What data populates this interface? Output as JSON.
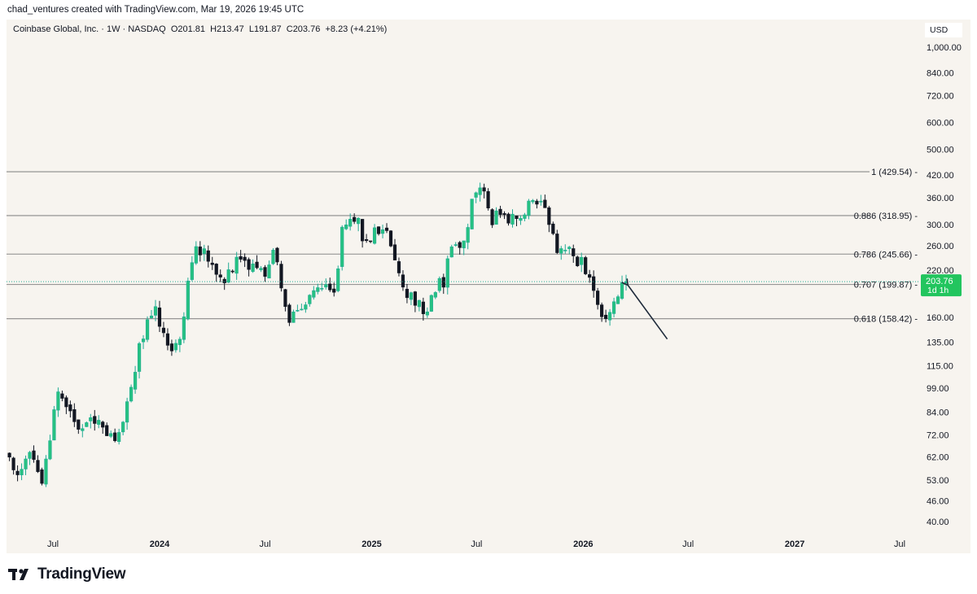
{
  "header": {
    "credit": "chad_ventures created with TradingView.com, Mar 19, 2026 19:45 UTC"
  },
  "legend": {
    "symbol": "Coinbase Global, Inc. · 1W · NASDAQ",
    "open": "O201.81",
    "high": "H213.47",
    "low": "L191.87",
    "close": "C203.76",
    "change": "+8.23 (+4.21%)"
  },
  "currency": "USD",
  "brand": {
    "name": "TradingView"
  },
  "colors": {
    "up": "#22ab94",
    "down": "#131722",
    "background": "#f7f4ef",
    "price_tag": "#22c55e"
  },
  "chart_data": {
    "type": "candlestick",
    "scale": "log",
    "interval": "1W",
    "ylim": [
      37,
      1100
    ],
    "y_ticks": [
      {
        "value": 1000,
        "label": "1,000.00"
      },
      {
        "value": 840,
        "label": "840.00"
      },
      {
        "value": 720,
        "label": "720.00"
      },
      {
        "value": 600,
        "label": "600.00"
      },
      {
        "value": 500,
        "label": "500.00"
      },
      {
        "value": 420,
        "label": "420.00"
      },
      {
        "value": 360,
        "label": "360.00"
      },
      {
        "value": 300,
        "label": "300.00"
      },
      {
        "value": 260,
        "label": "260.00"
      },
      {
        "value": 220,
        "label": "220.00"
      },
      {
        "value": 160,
        "label": "160.00"
      },
      {
        "value": 135,
        "label": "135.00"
      },
      {
        "value": 115,
        "label": "115.00"
      },
      {
        "value": 99,
        "label": "99.00"
      },
      {
        "value": 84,
        "label": "84.00"
      },
      {
        "value": 72,
        "label": "72.00"
      },
      {
        "value": 62,
        "label": "62.00"
      },
      {
        "value": 53,
        "label": "53.00"
      },
      {
        "value": 46,
        "label": "46.00"
      },
      {
        "value": 40,
        "label": "40.00"
      }
    ],
    "x_start": "2023-04-10",
    "x_end": "2027-08-01",
    "x_ticks": [
      {
        "date": "2023-07-01",
        "label": "Jul",
        "bold": false
      },
      {
        "date": "2024-01-01",
        "label": "2024",
        "bold": true
      },
      {
        "date": "2024-07-01",
        "label": "Jul",
        "bold": false
      },
      {
        "date": "2025-01-01",
        "label": "2025",
        "bold": true
      },
      {
        "date": "2025-07-01",
        "label": "Jul",
        "bold": false
      },
      {
        "date": "2026-01-01",
        "label": "2026",
        "bold": true
      },
      {
        "date": "2026-07-01",
        "label": "Jul",
        "bold": false
      },
      {
        "date": "2027-01-01",
        "label": "2027",
        "bold": true
      },
      {
        "date": "2027-07-01",
        "label": "Jul",
        "bold": false
      }
    ],
    "fib_levels": [
      {
        "level": "1",
        "value": 429.54,
        "label": "1 (429.54)"
      },
      {
        "level": "0.886",
        "value": 318.95,
        "label": "0.886 (318.95)"
      },
      {
        "level": "0.786",
        "value": 245.66,
        "label": "0.786 (245.66)"
      },
      {
        "level": "0.707",
        "value": 199.87,
        "label": "0.707 (199.87)"
      },
      {
        "level": "0.618",
        "value": 158.42,
        "label": "0.618 (158.42)"
      }
    ],
    "last_price": {
      "value": 203.76,
      "label": "203.76",
      "countdown": "1d 1h"
    },
    "annotation": {
      "type": "arrow",
      "from": {
        "date": "2026-05-26",
        "value": 138
      },
      "to": {
        "date": "2026-03-19",
        "value": 199
      }
    },
    "start_date": "2023-04-10",
    "close_path": [
      [
        "2023-04-10",
        66
      ],
      [
        "2023-05-01",
        54
      ],
      [
        "2023-05-22",
        62
      ],
      [
        "2023-06-12",
        52
      ],
      [
        "2023-06-26",
        72
      ],
      [
        "2023-07-10",
        100
      ],
      [
        "2023-07-24",
        88
      ],
      [
        "2023-08-14",
        75
      ],
      [
        "2023-09-04",
        78
      ],
      [
        "2023-09-25",
        76
      ],
      [
        "2023-10-16",
        72
      ],
      [
        "2023-10-30",
        80
      ],
      [
        "2023-11-13",
        98
      ],
      [
        "2023-11-27",
        132
      ],
      [
        "2023-12-11",
        155
      ],
      [
        "2023-12-25",
        175
      ],
      [
        "2024-01-08",
        140
      ],
      [
        "2024-01-22",
        125
      ],
      [
        "2024-02-05",
        140
      ],
      [
        "2024-02-19",
        195
      ],
      [
        "2024-03-04",
        250
      ],
      [
        "2024-03-18",
        255
      ],
      [
        "2024-04-01",
        228
      ],
      [
        "2024-04-22",
        212
      ],
      [
        "2024-05-13",
        240
      ],
      [
        "2024-05-27",
        225
      ],
      [
        "2024-06-17",
        230
      ],
      [
        "2024-07-01",
        210
      ],
      [
        "2024-07-15",
        255
      ],
      [
        "2024-07-29",
        195
      ],
      [
        "2024-08-12",
        160
      ],
      [
        "2024-08-26",
        168
      ],
      [
        "2024-09-09",
        172
      ],
      [
        "2024-09-30",
        190
      ],
      [
        "2024-10-14",
        196
      ],
      [
        "2024-10-28",
        188
      ],
      [
        "2024-11-11",
        285
      ],
      [
        "2024-11-25",
        310
      ],
      [
        "2024-12-09",
        305
      ],
      [
        "2024-12-23",
        260
      ],
      [
        "2025-01-06",
        288
      ],
      [
        "2025-01-20",
        292
      ],
      [
        "2025-02-03",
        268
      ],
      [
        "2025-02-17",
        218
      ],
      [
        "2025-03-03",
        190
      ],
      [
        "2025-03-17",
        182
      ],
      [
        "2025-04-07",
        160
      ],
      [
        "2025-04-21",
        198
      ],
      [
        "2025-05-05",
        205
      ],
      [
        "2025-05-19",
        258
      ],
      [
        "2025-06-02",
        245
      ],
      [
        "2025-06-16",
        300
      ],
      [
        "2025-06-30",
        385
      ],
      [
        "2025-07-14",
        395
      ],
      [
        "2025-07-28",
        310
      ],
      [
        "2025-08-11",
        318
      ],
      [
        "2025-08-25",
        305
      ],
      [
        "2025-09-08",
        320
      ],
      [
        "2025-09-22",
        320
      ],
      [
        "2025-10-06",
        365
      ],
      [
        "2025-10-20",
        345
      ],
      [
        "2025-11-03",
        305
      ],
      [
        "2025-11-17",
        248
      ],
      [
        "2025-12-01",
        262
      ],
      [
        "2025-12-15",
        240
      ],
      [
        "2026-01-05",
        225
      ],
      [
        "2026-01-19",
        200
      ],
      [
        "2026-02-02",
        158
      ],
      [
        "2026-02-16",
        168
      ],
      [
        "2026-03-02",
        192
      ],
      [
        "2026-03-16",
        203.76
      ]
    ]
  }
}
